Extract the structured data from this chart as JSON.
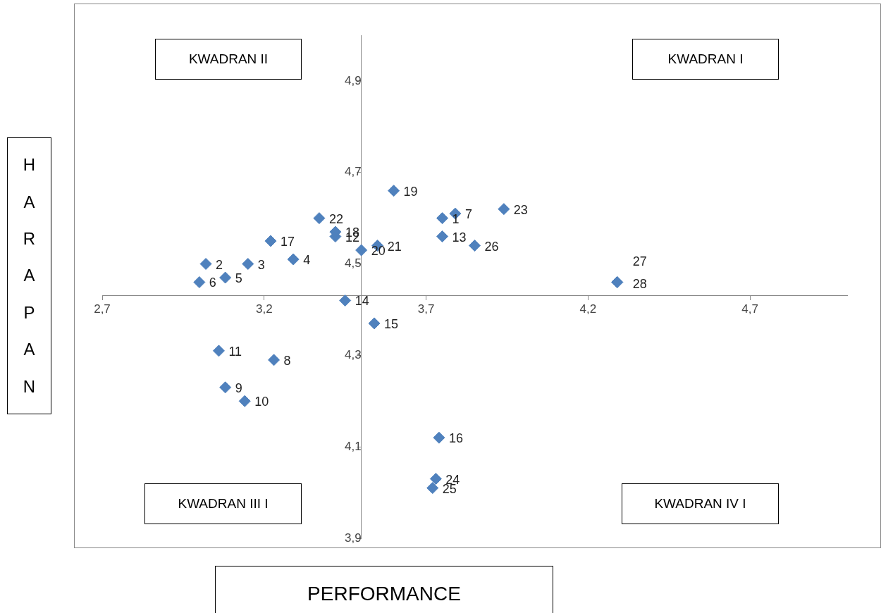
{
  "chart_data": {
    "type": "scatter",
    "xlabel": "PERFORMANCE",
    "ylabel": "HARAPAN",
    "annotations": [
      "KWADRAN II",
      "KWADRAN I",
      "KWADRAN III I",
      "KWADRAN IV I",
      {
        "text": "1",
        "x": 3.75,
        "y": 4.6
      },
      {
        "text": "2",
        "x": 3.02,
        "y": 4.5
      },
      {
        "text": "3",
        "x": 3.15,
        "y": 4.5
      },
      {
        "text": "4",
        "x": 3.29,
        "y": 4.51
      },
      {
        "text": "5",
        "x": 3.08,
        "y": 4.47
      },
      {
        "text": "6",
        "x": 3.0,
        "y": 4.46
      },
      {
        "text": "7",
        "x": 3.79,
        "y": 4.61
      },
      {
        "text": "8",
        "x": 3.23,
        "y": 4.29
      },
      {
        "text": "9",
        "x": 3.08,
        "y": 4.23
      },
      {
        "text": "10",
        "x": 3.14,
        "y": 4.2
      },
      {
        "text": "11",
        "x": 3.06,
        "y": 4.31
      },
      {
        "text": "12",
        "x": 3.42,
        "y": 4.56
      },
      {
        "text": "13",
        "x": 3.75,
        "y": 4.56
      },
      {
        "text": "14",
        "x": 3.45,
        "y": 4.42
      },
      {
        "text": "15",
        "x": 3.54,
        "y": 4.37
      },
      {
        "text": "16",
        "x": 3.74,
        "y": 4.12
      },
      {
        "text": "17",
        "x": 3.22,
        "y": 4.55
      },
      {
        "text": "18",
        "x": 3.42,
        "y": 4.57
      },
      {
        "text": "19",
        "x": 3.6,
        "y": 4.66
      },
      {
        "text": "20",
        "x": 3.5,
        "y": 4.53
      },
      {
        "text": "21",
        "x": 3.55,
        "y": 4.54
      },
      {
        "text": "22",
        "x": 3.37,
        "y": 4.6
      },
      {
        "text": "23",
        "x": 3.94,
        "y": 4.62
      },
      {
        "text": "24",
        "x": 3.73,
        "y": 4.03
      },
      {
        "text": "25",
        "x": 3.72,
        "y": 4.01
      },
      {
        "text": "26",
        "x": 3.85,
        "y": 4.54
      },
      {
        "text": "27",
        "x": 4.29,
        "y": 4.46
      },
      {
        "text": "28",
        "x": 4.29,
        "y": 4.46
      }
    ],
    "series": [
      {
        "color": "#4f81bd",
        "x": [
          3.75,
          3.02,
          3.15,
          3.29,
          3.08,
          3.0,
          3.79,
          3.23,
          3.08,
          3.14,
          3.06,
          3.42,
          3.75,
          3.45,
          3.54,
          3.74,
          3.22,
          3.42,
          3.6,
          3.5,
          3.55,
          3.37,
          3.94,
          3.73,
          3.72,
          3.85,
          4.29,
          4.29
        ],
        "values": [
          4.6,
          4.5,
          4.5,
          4.51,
          4.47,
          4.46,
          4.61,
          4.29,
          4.23,
          4.2,
          4.31,
          4.56,
          4.56,
          4.42,
          4.37,
          4.12,
          4.55,
          4.57,
          4.66,
          4.53,
          4.54,
          4.6,
          4.62,
          4.03,
          4.01,
          4.54,
          4.46,
          4.46
        ]
      }
    ],
    "marker": "diamond",
    "grid": false,
    "legend": false,
    "xlim": [
      2.7,
      5.0
    ],
    "ylim": [
      3.9,
      5.0
    ],
    "xticks": [
      {
        "value": 2.7,
        "label": "2,7"
      },
      {
        "value": 3.2,
        "label": "3,2"
      },
      {
        "value": 3.7,
        "label": "3,7"
      },
      {
        "value": 4.2,
        "label": "4,2"
      },
      {
        "value": 4.7,
        "label": "4,7"
      }
    ],
    "yticks": [
      {
        "value": 3.9,
        "label": "3,9"
      },
      {
        "value": 4.1,
        "label": "4,1"
      },
      {
        "value": 4.3,
        "label": "4,3"
      },
      {
        "value": 4.5,
        "label": "4,5"
      },
      {
        "value": 4.7,
        "label": "4,7"
      },
      {
        "value": 4.9,
        "label": "4,9"
      }
    ]
  }
}
